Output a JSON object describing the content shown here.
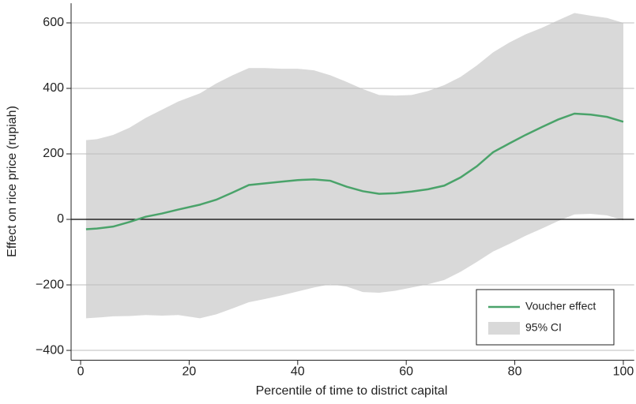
{
  "chart_data": {
    "type": "line",
    "xlabel": "Percentile of time to district capital",
    "ylabel": "Effect on rice price (rupiah)",
    "x": [
      1,
      3,
      6,
      9,
      12,
      15,
      18,
      22,
      25,
      28,
      31,
      34,
      37,
      40,
      43,
      46,
      49,
      52,
      55,
      58,
      61,
      64,
      67,
      70,
      73,
      76,
      79,
      82,
      85,
      88,
      91,
      94,
      97,
      100
    ],
    "series": [
      {
        "name": "Voucher effect",
        "color": "#4aa36a",
        "values": [
          -30,
          -28,
          -22,
          -8,
          8,
          18,
          30,
          45,
          60,
          82,
          105,
          110,
          115,
          120,
          122,
          118,
          100,
          86,
          78,
          80,
          85,
          92,
          103,
          128,
          162,
          205,
          232,
          258,
          282,
          305,
          323,
          320,
          313,
          298
        ]
      }
    ],
    "band": {
      "name": "95% CI",
      "color": "#d9d9d9",
      "upper": [
        242,
        245,
        258,
        280,
        310,
        335,
        360,
        385,
        415,
        440,
        462,
        462,
        460,
        460,
        455,
        440,
        420,
        398,
        380,
        378,
        380,
        392,
        410,
        435,
        470,
        510,
        540,
        565,
        585,
        608,
        630,
        622,
        615,
        600
      ],
      "lower": [
        -302,
        -300,
        -296,
        -295,
        -292,
        -294,
        -292,
        -302,
        -290,
        -272,
        -253,
        -243,
        -232,
        -220,
        -208,
        -198,
        -205,
        -222,
        -224,
        -218,
        -208,
        -198,
        -185,
        -160,
        -130,
        -98,
        -75,
        -50,
        -28,
        -5,
        15,
        17,
        12,
        -3
      ]
    },
    "xlim": [
      -2,
      102
    ],
    "xticks": [
      0,
      20,
      40,
      60,
      80,
      100
    ],
    "ylim": [
      -430,
      660
    ],
    "yticks": [
      {
        "value": -400,
        "label": "−400"
      },
      {
        "value": -200,
        "label": "−200"
      },
      0,
      200,
      400,
      600
    ],
    "grid": true,
    "hline": 0,
    "legend": "lower right"
  }
}
